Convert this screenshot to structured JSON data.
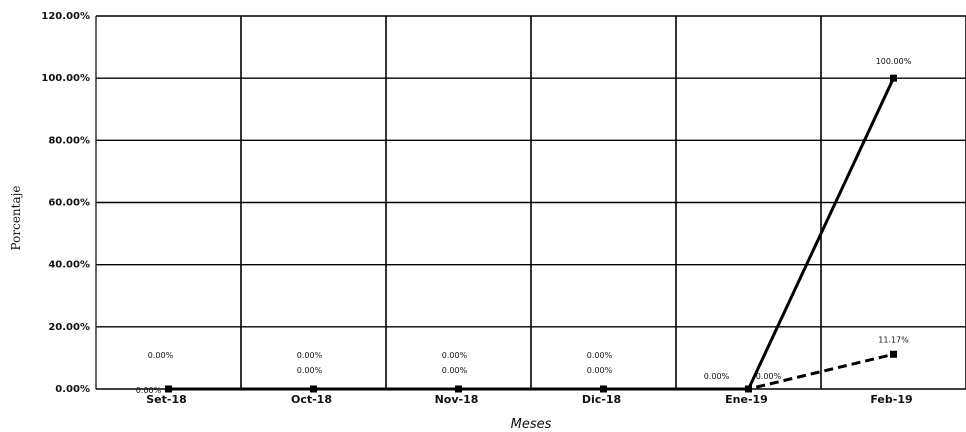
{
  "chart_data": {
    "type": "line",
    "title": "",
    "xlabel": "Meses",
    "ylabel": "Porcentaje",
    "categories": [
      "Set-18",
      "Oct-18",
      "Nov-18",
      "Dic-18",
      "Ene-19",
      "Feb-19"
    ],
    "ylim": [
      0,
      120
    ],
    "yticks": [
      0,
      20,
      40,
      60,
      80,
      100,
      120
    ],
    "ytick_labels": [
      "0.00%",
      "20.00%",
      "40.00%",
      "60.00%",
      "80.00%",
      "100.00%",
      "120.00%"
    ],
    "grid": true,
    "legend": "none",
    "series": [
      {
        "style": "solid",
        "color": "#000000",
        "values": [
          0,
          0,
          0,
          0,
          0,
          100
        ],
        "labels": [
          "0.00%",
          "0.00%",
          "0.00%",
          "0.00%",
          "0.00%",
          "100.00%"
        ]
      },
      {
        "style": "dashed",
        "color": "#000000",
        "values": [
          0,
          0,
          0,
          0,
          0,
          11.17
        ],
        "labels": [
          "0.00%",
          "0.00%",
          "0.00%",
          "0.00%",
          "0.00%",
          "11.17%"
        ]
      }
    ]
  }
}
